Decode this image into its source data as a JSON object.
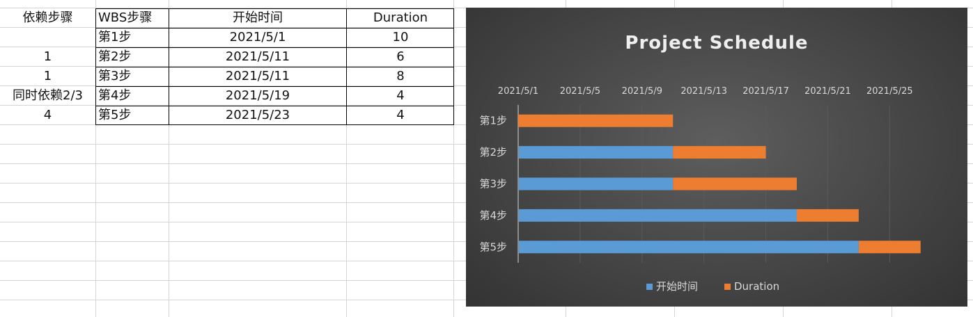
{
  "sheet": {
    "headers": {
      "col_a": "依赖步骤",
      "col_b": "WBS步骤",
      "col_c": "开始时间",
      "col_d": "Duration"
    },
    "rows": [
      {
        "dep": "",
        "step": "第1步",
        "start": "2021/5/1",
        "duration": "10"
      },
      {
        "dep": "1",
        "step": "第2步",
        "start": "2021/5/11",
        "duration": "6"
      },
      {
        "dep": "1",
        "step": "第3步",
        "start": "2021/5/11",
        "duration": "8"
      },
      {
        "dep": "同时依赖2/3",
        "step": "第4步",
        "start": "2021/5/19",
        "duration": "4"
      },
      {
        "dep": "4",
        "step": "第5步",
        "start": "2021/5/23",
        "duration": "4"
      }
    ]
  },
  "chart_data": {
    "type": "bar",
    "orientation": "horizontal",
    "stacked": true,
    "title": "Project Schedule",
    "categories": [
      "第1步",
      "第2步",
      "第3步",
      "第4步",
      "第5步"
    ],
    "series": [
      {
        "name": "开始时间",
        "values": [
          "2021/5/1",
          "2021/5/11",
          "2021/5/11",
          "2021/5/19",
          "2021/5/23"
        ],
        "color": "#5b9bd5",
        "visible": [
          false,
          true,
          true,
          true,
          true
        ]
      },
      {
        "name": "Duration",
        "values": [
          10,
          6,
          8,
          4,
          4
        ],
        "color": "#ed7d31"
      }
    ],
    "x_ticks": [
      "2021/5/1",
      "2021/5/5",
      "2021/5/9",
      "2021/5/13",
      "2021/5/17",
      "2021/5/21",
      "2021/5/25"
    ],
    "xlim": [
      "2021/5/1",
      "2021/5/28"
    ],
    "x_axis_position": "top",
    "category_order": "reversed",
    "grid": true,
    "legend": "bottom",
    "colors": {
      "background": "#404040",
      "text": "#d9d9d9",
      "grid": "#5a5a5a"
    }
  }
}
